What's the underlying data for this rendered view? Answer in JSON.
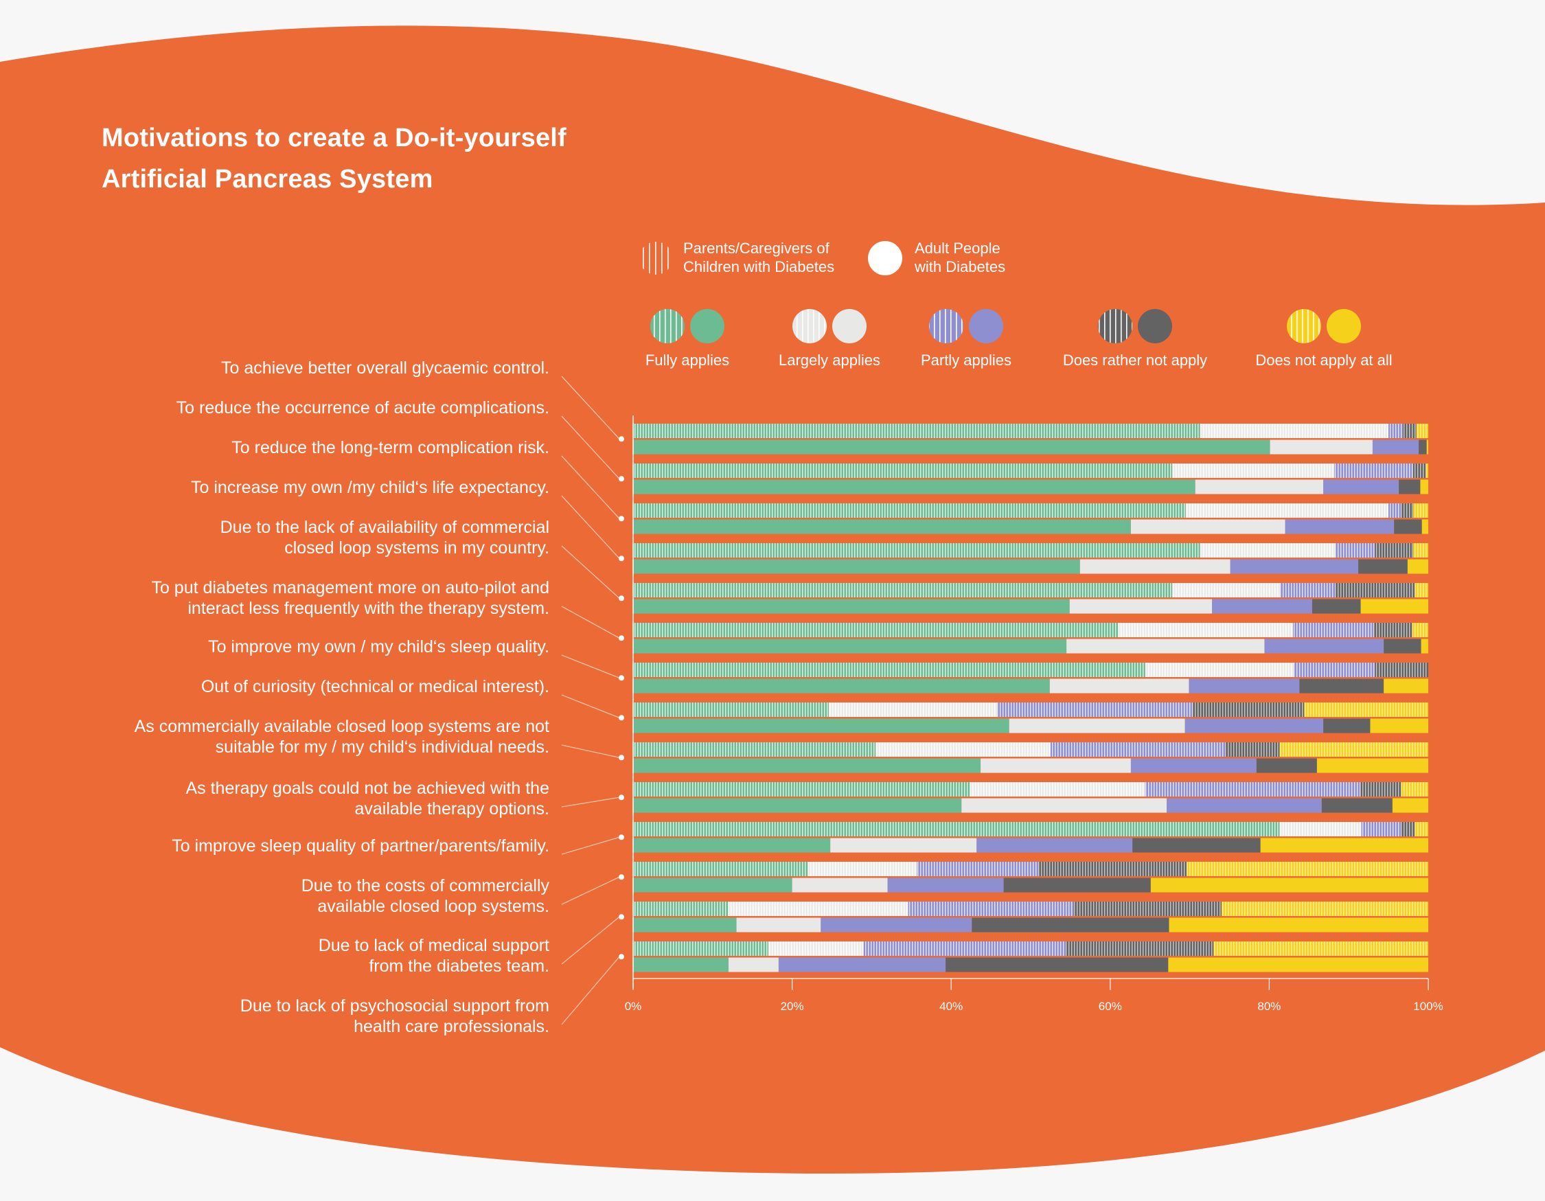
{
  "title_lines": [
    "Motivations to create a Do-it-yourself",
    "Artificial Pancreas System"
  ],
  "group_legend": [
    {
      "key": "parents",
      "lines": [
        "Parents/Caregivers of",
        "Children with Diabetes"
      ]
    },
    {
      "key": "adults",
      "lines": [
        "Adult People",
        "with Diabetes"
      ]
    }
  ],
  "response_legend": [
    "Fully applies",
    "Largely applies",
    "Partly applies",
    "Does rather not apply",
    "Does not apply at all"
  ],
  "colors": {
    "background": "#ec6a36",
    "fully": "#6dbb93",
    "largely": "#e8e8e6",
    "partly": "#8e8fd0",
    "rather_not": "#636363",
    "not_at_all": "#f6d11c",
    "text": "#ffffff"
  },
  "chart_data": {
    "type": "bar",
    "orientation": "horizontal",
    "stacked": true,
    "xlim": [
      0,
      100
    ],
    "x_ticks": [
      "0%",
      "20%",
      "40%",
      "60%",
      "80%",
      "100%"
    ],
    "series_order": [
      "Fully applies",
      "Largely applies",
      "Partly applies",
      "Does rather not apply",
      "Does not apply at all"
    ],
    "categories": [
      "To achieve better overall glycaemic control.",
      "To reduce the occurrence of acute complications.",
      "To reduce the long-term complication risk.",
      "To increase my own /my child‘s life expectancy.",
      "Due to the lack of availability of commercial closed loop systems in my country.",
      "To put diabetes management more on auto-pilot and interact less frequently with the therapy system.",
      "To improve my own  / my child‘s sleep quality.",
      "Out of curiosity (technical or medical interest).",
      "As commercially available closed loop systems are not suitable for my / my child‘s individual needs.",
      "As therapy goals could not be achieved with the available therapy options.",
      "To improve sleep quality of partner/parents/family.",
      "Due to the costs of commercially available closed loop systems.",
      "Due to lack of medical support from the diabetes team.",
      "Due to lack of psychosocial support from health care professionals."
    ],
    "label_lines": [
      [
        "To achieve better overall glycaemic control."
      ],
      [
        "To reduce the occurrence of acute complications."
      ],
      [
        "To reduce the long-term complication risk."
      ],
      [
        "To increase my own /my child‘s life expectancy."
      ],
      [
        "Due to the lack of availability of commercial",
        "closed loop systems in my country."
      ],
      [
        "To put diabetes management more on auto-pilot and",
        "interact less frequently with the therapy system."
      ],
      [
        "To improve my own  / my child‘s sleep quality."
      ],
      [
        "Out of curiosity (technical or medical interest)."
      ],
      [
        "As commercially available closed loop systems are not",
        "suitable for my / my child‘s individual needs."
      ],
      [
        "As therapy goals could not be achieved with the",
        "available therapy options."
      ],
      [
        "To improve sleep quality of partner/parents/family."
      ],
      [
        "Due to the costs of commercially",
        "available closed loop systems."
      ],
      [
        "Due to lack of medical support",
        "from the diabetes team."
      ],
      [
        "Due to lack of psychosocial support from",
        "health care professionals."
      ]
    ],
    "series": [
      {
        "name": "Parents/Caregivers of Children with Diabetes",
        "values": [
          [
            71.3,
            23.7,
            1.8,
            1.7,
            1.5
          ],
          [
            67.8,
            20.4,
            9.9,
            1.6,
            0.3
          ],
          [
            69.5,
            25.5,
            1.6,
            1.5,
            1.9
          ],
          [
            71.3,
            17.0,
            5.0,
            4.8,
            1.9
          ],
          [
            67.8,
            13.6,
            6.9,
            10.0,
            1.7
          ],
          [
            61.0,
            22.0,
            10.2,
            4.8,
            2.0
          ],
          [
            64.4,
            18.7,
            10.2,
            6.7,
            0.0
          ],
          [
            24.6,
            21.2,
            24.6,
            14.0,
            15.6
          ],
          [
            30.5,
            22.0,
            22.0,
            6.8,
            18.7
          ],
          [
            42.4,
            22.0,
            27.1,
            5.1,
            3.4
          ],
          [
            81.3,
            10.3,
            5.0,
            1.7,
            1.7
          ],
          [
            22.0,
            13.7,
            15.3,
            18.6,
            30.4
          ],
          [
            12.0,
            22.6,
            20.8,
            18.6,
            26.0
          ],
          [
            17.0,
            12.0,
            25.4,
            18.6,
            27.0
          ]
        ]
      },
      {
        "name": "Adult People with Diabetes",
        "values": [
          [
            80.1,
            12.9,
            5.8,
            1.0,
            0.2
          ],
          [
            70.7,
            16.1,
            9.5,
            2.7,
            1.0
          ],
          [
            62.6,
            19.4,
            13.7,
            3.5,
            0.8
          ],
          [
            56.2,
            18.9,
            16.1,
            6.2,
            2.6
          ],
          [
            54.9,
            17.9,
            12.6,
            6.1,
            8.5
          ],
          [
            54.5,
            24.9,
            15.0,
            4.7,
            0.9
          ],
          [
            52.4,
            17.5,
            13.9,
            10.6,
            5.6
          ],
          [
            47.3,
            22.1,
            17.4,
            5.9,
            7.3
          ],
          [
            43.7,
            18.9,
            15.8,
            7.6,
            14.0
          ],
          [
            41.3,
            25.8,
            19.5,
            8.9,
            4.5
          ],
          [
            24.8,
            18.4,
            19.6,
            16.1,
            21.1
          ],
          [
            20.0,
            12.0,
            14.6,
            18.5,
            34.9
          ],
          [
            13.0,
            10.6,
            19.0,
            24.8,
            32.6
          ],
          [
            12.0,
            6.3,
            21.0,
            28.0,
            32.7
          ]
        ]
      }
    ]
  }
}
